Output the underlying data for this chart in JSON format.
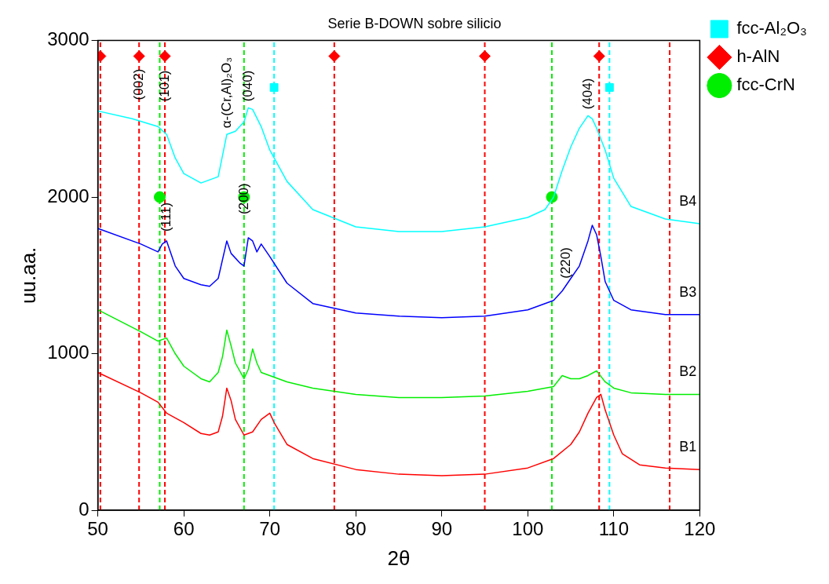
{
  "chart_data": {
    "type": "line",
    "title": "Serie B-DOWN sobre silicio",
    "xlabel": "2θ",
    "ylabel": "uu.aa.",
    "xlim": [
      50,
      120
    ],
    "xticks": [
      50,
      60,
      70,
      80,
      90,
      100,
      110,
      120
    ],
    "ylim": [
      0,
      3000
    ],
    "yticks": [
      0,
      1000,
      2000,
      3000
    ],
    "grid": false,
    "legend": "top right",
    "line_style": "solid",
    "series": [
      {
        "name": "B1",
        "color": "#ff0000",
        "x": [
          50,
          55,
          57,
          58,
          60,
          62,
          63,
          64,
          64.5,
          65,
          65.5,
          66,
          67,
          68,
          69,
          70,
          70.5,
          72,
          75,
          80,
          85,
          90,
          95,
          100,
          103,
          105,
          106,
          107,
          108,
          108.5,
          109,
          110,
          111,
          113,
          116,
          120
        ],
        "values": [
          880,
          750,
          690,
          620,
          560,
          490,
          480,
          500,
          600,
          780,
          700,
          580,
          480,
          500,
          580,
          620,
          560,
          420,
          330,
          260,
          230,
          220,
          230,
          270,
          330,
          420,
          500,
          620,
          720,
          740,
          640,
          480,
          360,
          290,
          270,
          260
        ]
      },
      {
        "name": "B2",
        "color": "#00ee00",
        "x": [
          50,
          55,
          57,
          58,
          59,
          60,
          62,
          63,
          64,
          64.5,
          65,
          65.5,
          66,
          67,
          67.5,
          68,
          68.5,
          69,
          70,
          72,
          75,
          80,
          85,
          90,
          95,
          100,
          103,
          104,
          105,
          106,
          107,
          108,
          109,
          110,
          112,
          116,
          120
        ],
        "values": [
          1280,
          1140,
          1080,
          1100,
          1000,
          920,
          840,
          820,
          880,
          980,
          1150,
          1050,
          940,
          840,
          900,
          1030,
          940,
          880,
          860,
          820,
          780,
          740,
          720,
          720,
          730,
          760,
          790,
          860,
          840,
          840,
          860,
          890,
          820,
          780,
          750,
          740,
          740
        ]
      },
      {
        "name": "B3",
        "color": "#0000ff",
        "x": [
          50,
          55,
          57,
          57.5,
          58,
          59,
          60,
          62,
          63,
          64,
          65,
          65.5,
          66.5,
          67,
          67.5,
          68,
          68.5,
          69,
          70,
          72,
          75,
          80,
          85,
          90,
          95,
          100,
          103,
          104,
          105,
          106,
          107,
          107.5,
          108,
          108.5,
          109,
          110,
          112,
          116,
          120
        ],
        "values": [
          1800,
          1700,
          1650,
          1700,
          1720,
          1560,
          1480,
          1440,
          1430,
          1480,
          1720,
          1640,
          1580,
          1560,
          1740,
          1720,
          1650,
          1700,
          1620,
          1450,
          1320,
          1260,
          1240,
          1230,
          1240,
          1280,
          1340,
          1400,
          1480,
          1560,
          1720,
          1820,
          1760,
          1620,
          1460,
          1340,
          1280,
          1250,
          1250
        ]
      },
      {
        "name": "B4",
        "color": "#00ffff",
        "x": [
          50,
          54,
          57,
          58,
          59,
          60,
          62,
          64,
          65,
          66,
          67,
          67.5,
          68,
          69,
          70,
          72,
          75,
          80,
          85,
          90,
          95,
          100,
          102,
          103,
          104,
          105,
          106,
          107,
          107.5,
          108,
          109,
          110,
          112,
          116,
          120
        ],
        "values": [
          2550,
          2500,
          2450,
          2400,
          2250,
          2150,
          2090,
          2130,
          2400,
          2420,
          2480,
          2570,
          2560,
          2450,
          2300,
          2100,
          1920,
          1810,
          1780,
          1780,
          1810,
          1870,
          1920,
          2000,
          2170,
          2320,
          2440,
          2520,
          2500,
          2440,
          2300,
          2120,
          1940,
          1860,
          1830
        ]
      },
      {
        "name": "fcc-Al₂O₃",
        "type": "scatter",
        "marker": "square",
        "color": "#00ffff",
        "x": [
          70.5,
          109.5
        ],
        "values": [
          2700,
          2700
        ]
      },
      {
        "name": "h-AlN",
        "type": "scatter",
        "marker": "diamond",
        "color": "#ff0000",
        "x": [
          50.3,
          54.8,
          57.8,
          77.5,
          95,
          108.3
        ],
        "values": [
          2900,
          2900,
          2900,
          2900,
          2900,
          2900
        ]
      },
      {
        "name": "fcc-CrN",
        "type": "scatter",
        "marker": "circle",
        "color": "#00ee00",
        "x": [
          57.2,
          67,
          102.8
        ],
        "values": [
          2000,
          2000,
          2000
        ]
      }
    ],
    "ref_lines": [
      {
        "axis": "x",
        "value": 50.3,
        "color": "#ff0000",
        "line_style": "dashed"
      },
      {
        "axis": "x",
        "value": 54.8,
        "color": "#ff0000",
        "line_style": "dashed"
      },
      {
        "axis": "x",
        "value": 57.8,
        "color": "#ff0000",
        "line_style": "dashed"
      },
      {
        "axis": "x",
        "value": 77.5,
        "color": "#ff0000",
        "line_style": "dashed"
      },
      {
        "axis": "x",
        "value": 95,
        "color": "#ff0000",
        "line_style": "dashed"
      },
      {
        "axis": "x",
        "value": 108.3,
        "color": "#ff0000",
        "line_style": "dashed"
      },
      {
        "axis": "x",
        "value": 116.5,
        "color": "#ff0000",
        "line_style": "dashed"
      },
      {
        "axis": "x",
        "value": 70.5,
        "color": "#00ffff",
        "line_style": "dashed"
      },
      {
        "axis": "x",
        "value": 109.5,
        "color": "#00ffff",
        "line_style": "dashed"
      },
      {
        "axis": "x",
        "value": 57.2,
        "color": "#00ee00",
        "line_style": "dashed"
      },
      {
        "axis": "x",
        "value": 67,
        "color": "#00ee00",
        "line_style": "dashed"
      },
      {
        "axis": "x",
        "value": 102.8,
        "color": "#00ee00",
        "line_style": "dashed"
      }
    ],
    "annotations": [
      {
        "text": "(002)",
        "x": 54.8,
        "y": 2580
      },
      {
        "text": "(101)",
        "x": 57.8,
        "y": 2570
      },
      {
        "text": "α-(Cr,Al)₂O₃",
        "x": 65,
        "y": 2400
      },
      {
        "text": "(040)",
        "x": 67.5,
        "y": 2570
      },
      {
        "text": "(111)",
        "x": 58.0,
        "y": 1740
      },
      {
        "text": "(200)",
        "x": 67,
        "y": 1850
      },
      {
        "text": "(220)",
        "x": 104.5,
        "y": 1440
      },
      {
        "text": "(404)",
        "x": 107,
        "y": 2520
      }
    ]
  }
}
